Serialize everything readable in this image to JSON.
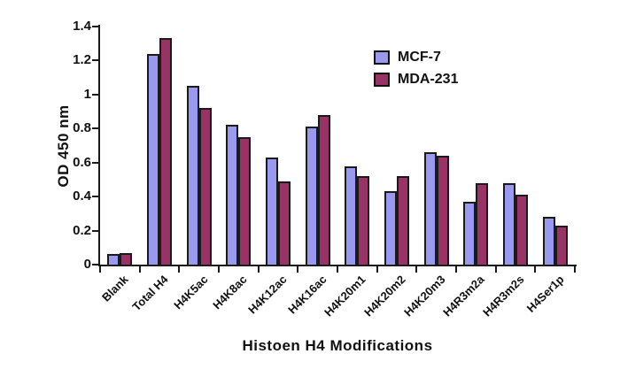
{
  "chart_data": {
    "type": "bar",
    "title": "",
    "xlabel": "Histoen H4 Modifications",
    "ylabel": "OD 450 nm",
    "categories": [
      "Blank",
      "Total H4",
      "H4K5ac",
      "H4K8ac",
      "H4K12ac",
      "H4K16ac",
      "H4K20m1",
      "H4K20m2",
      "H4K20m3",
      "H4R3m2a",
      "H4R3m2s",
      "H4Ser1p"
    ],
    "series": [
      {
        "name": "MCF-7",
        "color": "#9999F0",
        "values": [
          0.06,
          1.24,
          1.05,
          0.82,
          0.63,
          0.81,
          0.58,
          0.43,
          0.66,
          0.37,
          0.48,
          0.28
        ]
      },
      {
        "name": "MDA-231",
        "color": "#993366",
        "values": [
          0.07,
          1.33,
          0.92,
          0.75,
          0.49,
          0.88,
          0.52,
          0.52,
          0.64,
          0.48,
          0.41,
          0.23
        ]
      }
    ],
    "ylim": [
      0,
      1.4
    ],
    "y_ticks": [
      0,
      0.2,
      0.4,
      0.6,
      0.8,
      1,
      1.2,
      1.4
    ],
    "y_tick_labels": [
      "0",
      "0.2",
      "0.4",
      "0.6",
      "0.8",
      "1",
      "1.2",
      "1.4"
    ],
    "grid": false,
    "legend_position": "inside-upper-right",
    "bar_border_color": "#1a1a1a",
    "axis_color": "#1a1a1a",
    "background_color": "#ffffff"
  }
}
